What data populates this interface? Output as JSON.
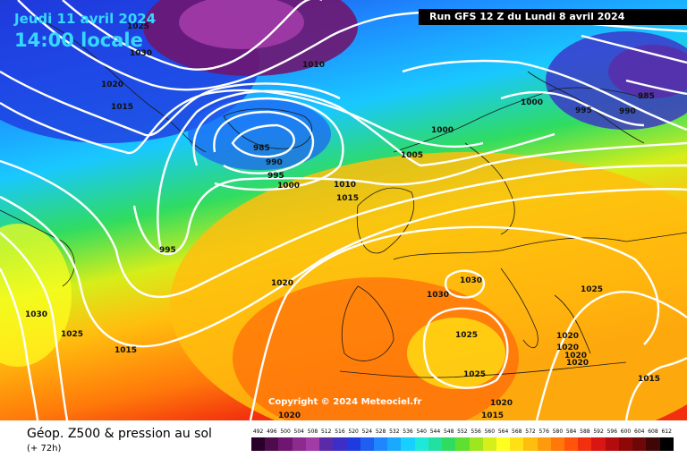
{
  "header": {
    "date_label": "Jeudi 11 avril 2024",
    "time_label": "14:00 locale",
    "run_label": "Run GFS 12 Z du Lundi 8 avril 2024"
  },
  "copyright": "Copyright © 2024 Meteociel.fr",
  "footer": {
    "title": "Géop. Z500 & pression au sol",
    "subtitle": "(+ 72h)"
  },
  "color_scale": {
    "values": [
      "492",
      "496",
      "500",
      "504",
      "508",
      "512",
      "516",
      "520",
      "524",
      "528",
      "532",
      "536",
      "540",
      "544",
      "548",
      "552",
      "556",
      "560",
      "564",
      "568",
      "572",
      "576",
      "580",
      "584",
      "588",
      "592",
      "596",
      "600",
      "604",
      "608",
      "612"
    ],
    "colors": [
      "#2a002a",
      "#4d0d4d",
      "#6e1670",
      "#8c2a8e",
      "#a23ba8",
      "#5b2aa8",
      "#3c2fc8",
      "#1f3ae0",
      "#1e5ff2",
      "#1e86ff",
      "#19aaff",
      "#18d0ff",
      "#1ee8d8",
      "#22e0a0",
      "#30dc60",
      "#5fe030",
      "#a0e61e",
      "#d6ee1a",
      "#ffff20",
      "#ffe014",
      "#ffbe0e",
      "#ff9a0c",
      "#ff780a",
      "#ff540a",
      "#f2300e",
      "#d81612",
      "#b40c0e",
      "#8e0808",
      "#6e0808",
      "#3e0606",
      "#000000"
    ]
  },
  "pressure_labels": [
    {
      "text": "1025"
    },
    {
      "text": "1030"
    },
    {
      "text": "1020"
    },
    {
      "text": "1015"
    },
    {
      "text": "1010"
    },
    {
      "text": "985"
    },
    {
      "text": "990"
    },
    {
      "text": "995"
    },
    {
      "text": "1000"
    },
    {
      "text": "1000"
    },
    {
      "text": "1005"
    },
    {
      "text": "1010"
    },
    {
      "text": "1015"
    },
    {
      "text": "985"
    },
    {
      "text": "995"
    },
    {
      "text": "990"
    },
    {
      "text": "1000"
    },
    {
      "text": "995"
    },
    {
      "text": "1020"
    },
    {
      "text": "1030"
    },
    {
      "text": "1025"
    },
    {
      "text": "1015"
    },
    {
      "text": "1030"
    },
    {
      "text": "1030"
    },
    {
      "text": "1025"
    },
    {
      "text": "1025"
    },
    {
      "text": "1025"
    },
    {
      "text": "1020"
    },
    {
      "text": "1020"
    },
    {
      "text": "1020"
    },
    {
      "text": "1020"
    },
    {
      "text": "1015"
    },
    {
      "text": "1020"
    },
    {
      "text": "1015"
    },
    {
      "text": "1020"
    }
  ]
}
